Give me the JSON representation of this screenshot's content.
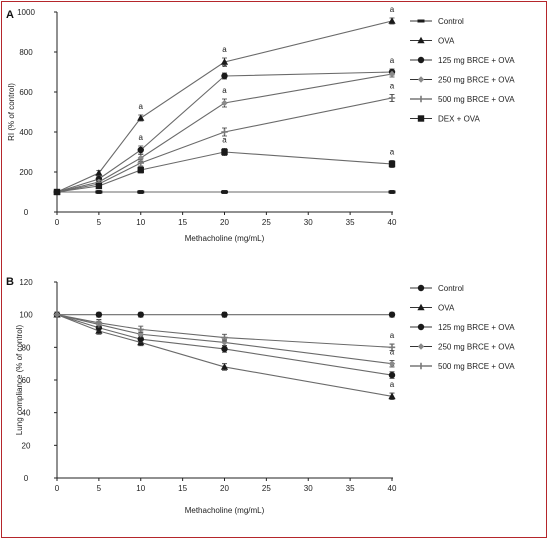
{
  "chart_data": [
    {
      "panel": "A",
      "type": "line",
      "xlabel": "Methacholine (mg/mL)",
      "ylabel": "RI (% of control)",
      "xlim": [
        0,
        40
      ],
      "ylim": [
        0,
        1000
      ],
      "xticks": [
        0,
        5,
        10,
        15,
        20,
        25,
        30,
        35,
        40
      ],
      "yticks": [
        0,
        200,
        400,
        600,
        800,
        1000
      ],
      "grid": false,
      "legend_position": "top-right",
      "x": [
        0,
        5,
        10,
        20,
        40
      ],
      "series": [
        {
          "name": "Control",
          "marker": "bar",
          "values": [
            100,
            100,
            100,
            100,
            100
          ],
          "errors": [
            8,
            8,
            8,
            8,
            8
          ],
          "annotations": [
            "",
            "",
            "",
            "",
            ""
          ]
        },
        {
          "name": "OVA",
          "marker": "triangle",
          "values": [
            100,
            195,
            470,
            750,
            955
          ],
          "errors": [
            10,
            12,
            15,
            20,
            15
          ],
          "annotations": [
            "",
            "",
            "a",
            "a",
            "a"
          ]
        },
        {
          "name": "125 mg BRCE + OVA",
          "marker": "circle",
          "values": [
            100,
            165,
            310,
            680,
            700
          ],
          "errors": [
            10,
            12,
            20,
            15,
            15
          ],
          "annotations": [
            "",
            "",
            "a",
            "a",
            "a"
          ]
        },
        {
          "name": "250 mg BRCE + OVA",
          "marker": "diamond",
          "values": [
            100,
            150,
            270,
            545,
            690
          ],
          "errors": [
            10,
            12,
            18,
            20,
            15
          ],
          "annotations": [
            "",
            "",
            "",
            "a",
            ""
          ]
        },
        {
          "name": "500 mg BRCE + OVA",
          "marker": "cross",
          "values": [
            100,
            140,
            245,
            400,
            570
          ],
          "errors": [
            10,
            12,
            15,
            20,
            18
          ],
          "annotations": [
            "",
            "",
            "",
            "",
            "a"
          ]
        },
        {
          "name": "DEX + OVA",
          "marker": "square",
          "values": [
            100,
            130,
            210,
            300,
            240
          ],
          "errors": [
            10,
            10,
            15,
            18,
            18
          ],
          "annotations": [
            "",
            "",
            "",
            "a",
            "a"
          ]
        }
      ]
    },
    {
      "panel": "B",
      "type": "line",
      "xlabel": "Methacholine (mg/mL)",
      "ylabel": "Lung compliance (% of control)",
      "xlim": [
        0,
        40
      ],
      "ylim": [
        0,
        120
      ],
      "xticks": [
        0,
        5,
        10,
        15,
        20,
        25,
        30,
        35,
        40
      ],
      "yticks": [
        0,
        20,
        40,
        60,
        80,
        100,
        120
      ],
      "grid": false,
      "legend_position": "top-right",
      "x": [
        0,
        5,
        10,
        20,
        40
      ],
      "series": [
        {
          "name": "Control",
          "marker": "circle",
          "values": [
            100,
            100,
            100,
            100,
            100
          ],
          "errors": [
            1.5,
            1.5,
            1.5,
            1.5,
            1.5
          ],
          "annotations": [
            "",
            "",
            "",
            "",
            ""
          ]
        },
        {
          "name": "OVA",
          "marker": "triangle",
          "values": [
            100,
            90,
            83,
            68,
            50
          ],
          "errors": [
            1.5,
            2,
            2,
            2,
            2
          ],
          "annotations": [
            "",
            "",
            "",
            "",
            "a"
          ]
        },
        {
          "name": "125 mg BRCE + OVA",
          "marker": "circle",
          "values": [
            100,
            92,
            85,
            79,
            63
          ],
          "errors": [
            1.5,
            2,
            2,
            2,
            2
          ],
          "annotations": [
            "",
            "",
            "",
            "",
            "a"
          ]
        },
        {
          "name": "250 mg BRCE + OVA",
          "marker": "diamond",
          "values": [
            100,
            94,
            88,
            83,
            70
          ],
          "errors": [
            1.5,
            2,
            2,
            2,
            2
          ],
          "annotations": [
            "",
            "",
            "",
            "",
            "a"
          ]
        },
        {
          "name": "500 mg BRCE + OVA",
          "marker": "cross",
          "values": [
            100,
            95,
            91,
            86,
            80
          ],
          "errors": [
            1.5,
            2,
            2,
            2,
            2
          ],
          "annotations": [
            "",
            "",
            "",
            "",
            "a"
          ]
        }
      ]
    }
  ]
}
